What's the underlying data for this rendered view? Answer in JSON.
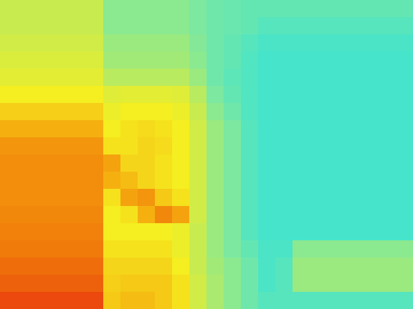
{
  "chart_data": {
    "type": "heatmap",
    "tick_labels": false,
    "color_range": [
      0,
      100
    ],
    "cells": [
      [
        50,
        50,
        50,
        50,
        50,
        50,
        42,
        42,
        42,
        42,
        42,
        40,
        38,
        37,
        36,
        36,
        36,
        36,
        36,
        36,
        36,
        36,
        36,
        36
      ],
      [
        50,
        50,
        50,
        50,
        50,
        50,
        42,
        42,
        42,
        42,
        42,
        40,
        38,
        37,
        36,
        34,
        34,
        34,
        34,
        34,
        34,
        34,
        34,
        34
      ],
      [
        52,
        52,
        52,
        52,
        52,
        52,
        44,
        44,
        44,
        44,
        44,
        41,
        38,
        36,
        34,
        32,
        32,
        32,
        32,
        32,
        32,
        32,
        32,
        32
      ],
      [
        54,
        54,
        54,
        54,
        54,
        54,
        45,
        45,
        45,
        45,
        45,
        42,
        38,
        36,
        33,
        31,
        31,
        31,
        31,
        31,
        31,
        31,
        31,
        31
      ],
      [
        56,
        56,
        56,
        56,
        56,
        56,
        48,
        48,
        48,
        48,
        48,
        44,
        38,
        35,
        33,
        31,
        31,
        31,
        31,
        31,
        31,
        31,
        31,
        31
      ],
      [
        60,
        60,
        60,
        60,
        60,
        60,
        55,
        56,
        56,
        56,
        55,
        48,
        40,
        36,
        33,
        31,
        31,
        31,
        31,
        31,
        31,
        31,
        31,
        31
      ],
      [
        65,
        65,
        65,
        65,
        65,
        65,
        58,
        60,
        60,
        60,
        58,
        50,
        42,
        38,
        33,
        31,
        31,
        31,
        31,
        31,
        31,
        31,
        31,
        31
      ],
      [
        70,
        70,
        70,
        70,
        70,
        70,
        60,
        62,
        63,
        62,
        60,
        52,
        44,
        40,
        34,
        31,
        31,
        31,
        31,
        31,
        31,
        31,
        31,
        31
      ],
      [
        74,
        74,
        74,
        74,
        74,
        74,
        62,
        62,
        64,
        63,
        60,
        52,
        44,
        40,
        34,
        31,
        31,
        31,
        31,
        31,
        31,
        31,
        31,
        31
      ],
      [
        75,
        75,
        75,
        75,
        75,
        75,
        72,
        64,
        64,
        62,
        60,
        52,
        44,
        40,
        34,
        31,
        31,
        31,
        31,
        31,
        31,
        31,
        31,
        31
      ],
      [
        75,
        75,
        75,
        75,
        75,
        75,
        70,
        68,
        64,
        62,
        60,
        52,
        44,
        40,
        34,
        31,
        31,
        31,
        31,
        31,
        31,
        31,
        31,
        31
      ],
      [
        75,
        75,
        75,
        75,
        75,
        75,
        62,
        72,
        74,
        66,
        62,
        52,
        44,
        40,
        34,
        31,
        31,
        31,
        31,
        31,
        31,
        31,
        31,
        31
      ],
      [
        76,
        76,
        76,
        76,
        76,
        76,
        60,
        62,
        70,
        76,
        72,
        52,
        44,
        40,
        34,
        31,
        31,
        31,
        31,
        31,
        31,
        31,
        31,
        31
      ],
      [
        77,
        77,
        77,
        77,
        77,
        77,
        60,
        60,
        60,
        60,
        58,
        50,
        44,
        40,
        34,
        31,
        31,
        31,
        31,
        31,
        31,
        31,
        31,
        31
      ],
      [
        78,
        78,
        78,
        78,
        78,
        78,
        62,
        62,
        62,
        62,
        58,
        50,
        44,
        40,
        36,
        32,
        32,
        42,
        42,
        42,
        42,
        42,
        42,
        42
      ],
      [
        80,
        80,
        80,
        80,
        80,
        80,
        64,
        64,
        64,
        64,
        60,
        50,
        45,
        42,
        38,
        32,
        34,
        44,
        44,
        44,
        44,
        44,
        44,
        44
      ],
      [
        82,
        82,
        82,
        82,
        82,
        82,
        65,
        66,
        66,
        66,
        62,
        52,
        46,
        42,
        38,
        32,
        34,
        44,
        44,
        44,
        44,
        44,
        44,
        44
      ],
      [
        86,
        86,
        86,
        86,
        86,
        86,
        66,
        68,
        68,
        66,
        62,
        52,
        46,
        42,
        38,
        34,
        34,
        34,
        34,
        34,
        34,
        34,
        34,
        34
      ]
    ]
  }
}
